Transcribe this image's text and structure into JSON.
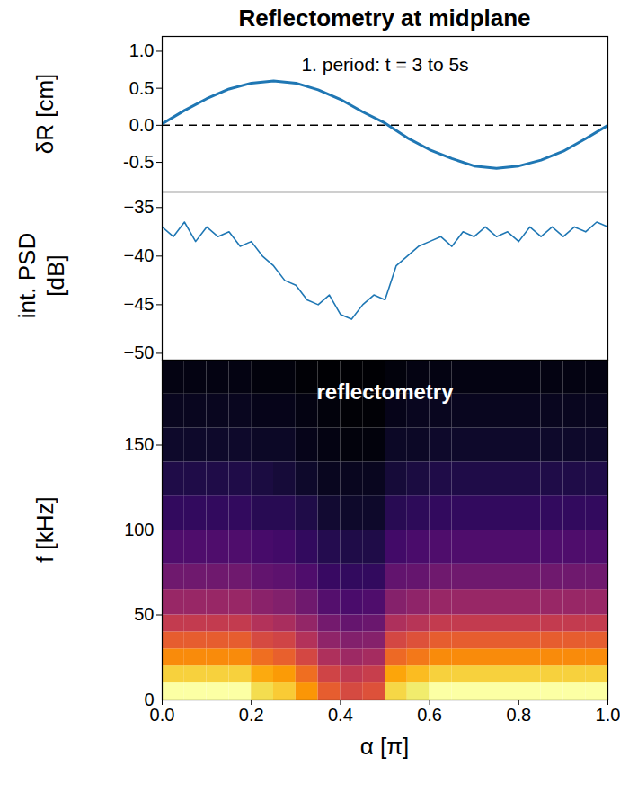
{
  "chart_data": [
    {
      "type": "line",
      "title": "Reflectometry at midplane",
      "ylabel": "δR [cm]",
      "annotations": [
        "1. period: t = 3 to 5s"
      ],
      "x": [
        0,
        0.05,
        0.1,
        0.15,
        0.2,
        0.25,
        0.3,
        0.35,
        0.4,
        0.45,
        0.5,
        0.55,
        0.6,
        0.65,
        0.7,
        0.75,
        0.8,
        0.85,
        0.9,
        0.95,
        1.0
      ],
      "values": [
        0.02,
        0.2,
        0.36,
        0.49,
        0.57,
        0.6,
        0.57,
        0.48,
        0.35,
        0.18,
        0.03,
        -0.17,
        -0.33,
        -0.45,
        -0.55,
        -0.58,
        -0.55,
        -0.47,
        -0.35,
        -0.18,
        0.0
      ],
      "color": "#1f77b4",
      "line_style": "solid",
      "hlines": [
        0
      ],
      "xlim": [
        0,
        1
      ],
      "ylim": [
        -0.9,
        1.2
      ],
      "yticks": [
        -0.5,
        {
          "value": 0,
          "label": "0.0"
        },
        0.5,
        {
          "value": 1,
          "label": "1.0"
        }
      ],
      "tick_labels": "y"
    },
    {
      "type": "line",
      "ylabel": "int. PSD [dB]",
      "x": [
        0,
        0.025,
        0.05,
        0.075,
        0.1,
        0.125,
        0.15,
        0.175,
        0.2,
        0.225,
        0.25,
        0.275,
        0.3,
        0.325,
        0.35,
        0.375,
        0.4,
        0.425,
        0.45,
        0.475,
        0.5,
        0.525,
        0.55,
        0.575,
        0.6,
        0.625,
        0.65,
        0.675,
        0.7,
        0.725,
        0.75,
        0.775,
        0.8,
        0.825,
        0.85,
        0.875,
        0.9,
        0.925,
        0.95,
        0.975,
        1.0
      ],
      "values": [
        -37,
        -38,
        -36.5,
        -38.5,
        -37,
        -38,
        -37.5,
        -39,
        -38.5,
        -40,
        -41,
        -42.5,
        -43,
        -44.5,
        -45,
        -44,
        -46,
        -46.5,
        -45,
        -44,
        -44.5,
        -41,
        -40,
        -39,
        -38.5,
        -38,
        -39,
        -37.5,
        -38,
        -37,
        -38,
        -37.5,
        -38.5,
        -37,
        -38,
        -37,
        -38,
        -37,
        -37.5,
        -36.5,
        -37
      ],
      "color": "#1f77b4",
      "xlim": [
        0,
        1
      ],
      "ylim": [
        -50.7,
        -33.4
      ],
      "yticks": [
        {
          "value": -35,
          "label": "−35"
        },
        {
          "value": -40,
          "label": "−40"
        },
        {
          "value": -45,
          "label": "−45"
        },
        {
          "value": -50,
          "label": "−50"
        }
      ],
      "tick_labels": "y"
    },
    {
      "type": "heatmap",
      "xlabel": "α [π]",
      "ylabel": "f [kHz]",
      "color": "inferno",
      "annotations": [
        "reflectometry"
      ],
      "x_edges": [
        0,
        0.05,
        0.1,
        0.15,
        0.2,
        0.25,
        0.3,
        0.35,
        0.4,
        0.45,
        0.5,
        0.55,
        0.6,
        0.65,
        0.7,
        0.75,
        0.8,
        0.85,
        0.9,
        0.95,
        1.0
      ],
      "y_edges": [
        0,
        10,
        20,
        30,
        40,
        50,
        65,
        80,
        100,
        120,
        140,
        160,
        180,
        200
      ],
      "cells": [
        [
          0.95,
          0.85,
          0.72,
          0.62,
          0.52,
          0.42,
          0.33,
          0.26,
          0.2,
          0.16,
          0.12,
          0.1,
          0.08
        ],
        [
          0.95,
          0.85,
          0.72,
          0.62,
          0.52,
          0.42,
          0.33,
          0.26,
          0.2,
          0.16,
          0.12,
          0.1,
          0.08
        ],
        [
          0.95,
          0.85,
          0.72,
          0.62,
          0.52,
          0.42,
          0.33,
          0.26,
          0.2,
          0.16,
          0.12,
          0.1,
          0.08
        ],
        [
          0.95,
          0.85,
          0.72,
          0.62,
          0.52,
          0.42,
          0.33,
          0.26,
          0.2,
          0.16,
          0.12,
          0.1,
          0.08
        ],
        [
          0.87,
          0.78,
          0.66,
          0.57,
          0.48,
          0.39,
          0.3,
          0.24,
          0.18,
          0.15,
          0.11,
          0.09,
          0.07
        ],
        [
          0.84,
          0.75,
          0.63,
          0.55,
          0.46,
          0.37,
          0.29,
          0.23,
          0.18,
          0.14,
          0.11,
          0.09,
          0.07
        ],
        [
          0.74,
          0.66,
          0.56,
          0.48,
          0.41,
          0.33,
          0.26,
          0.2,
          0.16,
          0.12,
          0.09,
          0.08,
          0.06
        ],
        [
          0.62,
          0.55,
          0.47,
          0.4,
          0.34,
          0.27,
          0.21,
          0.17,
          0.13,
          0.1,
          0.08,
          0.07,
          0.05
        ],
        [
          0.57,
          0.51,
          0.43,
          0.37,
          0.31,
          0.25,
          0.2,
          0.16,
          0.12,
          0.1,
          0.07,
          0.06,
          0.05
        ],
        [
          0.59,
          0.53,
          0.45,
          0.38,
          0.32,
          0.26,
          0.2,
          0.16,
          0.12,
          0.1,
          0.07,
          0.06,
          0.05
        ],
        [
          0.86,
          0.77,
          0.65,
          0.56,
          0.47,
          0.38,
          0.3,
          0.23,
          0.18,
          0.14,
          0.11,
          0.09,
          0.07
        ],
        [
          0.9,
          0.81,
          0.68,
          0.59,
          0.49,
          0.4,
          0.31,
          0.25,
          0.19,
          0.15,
          0.11,
          0.1,
          0.08
        ],
        [
          0.95,
          0.85,
          0.72,
          0.62,
          0.52,
          0.42,
          0.33,
          0.26,
          0.2,
          0.16,
          0.12,
          0.1,
          0.08
        ],
        [
          0.95,
          0.85,
          0.72,
          0.62,
          0.52,
          0.42,
          0.33,
          0.26,
          0.2,
          0.16,
          0.12,
          0.1,
          0.08
        ],
        [
          0.95,
          0.85,
          0.72,
          0.62,
          0.52,
          0.42,
          0.33,
          0.26,
          0.2,
          0.16,
          0.12,
          0.1,
          0.08
        ],
        [
          0.95,
          0.85,
          0.72,
          0.62,
          0.52,
          0.42,
          0.33,
          0.26,
          0.2,
          0.16,
          0.12,
          0.1,
          0.08
        ],
        [
          0.95,
          0.85,
          0.72,
          0.62,
          0.52,
          0.42,
          0.33,
          0.26,
          0.2,
          0.16,
          0.12,
          0.1,
          0.08
        ],
        [
          0.95,
          0.85,
          0.72,
          0.62,
          0.52,
          0.42,
          0.33,
          0.26,
          0.2,
          0.16,
          0.12,
          0.1,
          0.08
        ],
        [
          0.95,
          0.85,
          0.72,
          0.62,
          0.52,
          0.42,
          0.33,
          0.26,
          0.2,
          0.16,
          0.12,
          0.1,
          0.08
        ],
        [
          0.95,
          0.85,
          0.72,
          0.62,
          0.52,
          0.42,
          0.33,
          0.26,
          0.2,
          0.16,
          0.12,
          0.1,
          0.08
        ]
      ],
      "xlim": [
        0,
        1
      ],
      "ylim": [
        0,
        200
      ],
      "xticks": [
        {
          "value": 0,
          "label": "0.0"
        },
        0.2,
        0.4,
        0.6,
        0.8,
        {
          "value": 1,
          "label": "1.0"
        }
      ],
      "yticks": [
        0,
        50,
        100,
        150
      ]
    }
  ]
}
